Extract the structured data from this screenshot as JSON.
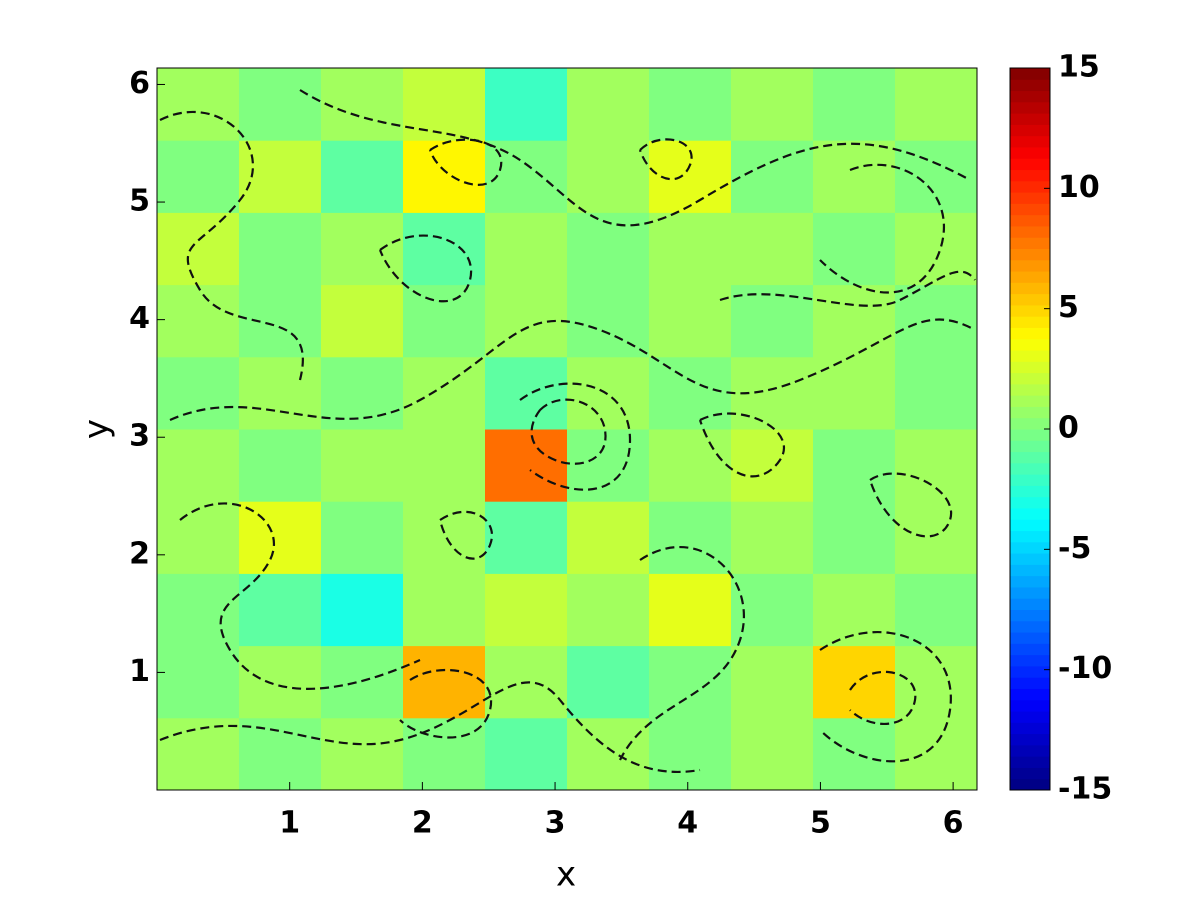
{
  "chart_data": {
    "type": "heatmap",
    "x_label": "x",
    "y_label": "y",
    "xlim": [
      0,
      6.18
    ],
    "ylim": [
      0,
      6.14
    ],
    "xticks": [
      1,
      2,
      3,
      4,
      5,
      6
    ],
    "yticks": [
      1,
      2,
      3,
      4,
      5,
      6
    ],
    "z": [
      [
        1,
        0,
        1,
        0,
        -1,
        1,
        0,
        1,
        0,
        1
      ],
      [
        0,
        1,
        0,
        6,
        1,
        -1,
        0,
        1,
        5,
        1
      ],
      [
        0,
        -1,
        -3,
        1,
        2,
        1,
        3,
        0,
        1,
        0
      ],
      [
        1,
        3,
        0,
        1,
        -1,
        2,
        0,
        1,
        0,
        1
      ],
      [
        1,
        0,
        1,
        1,
        8,
        0,
        1,
        2,
        0,
        1
      ],
      [
        0,
        1,
        0,
        1,
        -1,
        1,
        0,
        1,
        1,
        0
      ],
      [
        1,
        0,
        2,
        0,
        1,
        0,
        1,
        0,
        1,
        0
      ],
      [
        2,
        0,
        1,
        -1,
        1,
        0,
        1,
        1,
        0,
        1
      ],
      [
        0,
        2,
        -1,
        4,
        0,
        1,
        3,
        0,
        1,
        0
      ],
      [
        1,
        0,
        1,
        2,
        -2,
        1,
        0,
        1,
        0,
        1
      ]
    ],
    "colormap": "jet",
    "clim": [
      -15,
      15
    ],
    "cticks": [
      -15,
      -10,
      -5,
      0,
      5,
      10,
      15
    ]
  }
}
